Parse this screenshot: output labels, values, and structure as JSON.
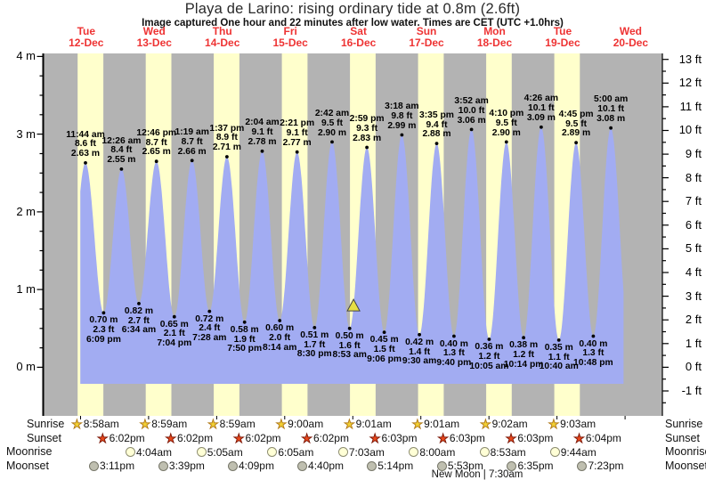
{
  "title": "Playa de Larino: rising  ordinary tide at 0.8m (2.6ft)",
  "subtitle": "Image captured One hour and 22 minutes after low water. Times are CET (UTC +1.0hrs)",
  "colors": {
    "night_band": "#b3b3b3",
    "day_band": "#ffffcc",
    "water": "#a2acf2",
    "day_label_red": "#ee3333",
    "marker_yellow": "#e6df45"
  },
  "chart_data": {
    "type": "area",
    "title": "Playa de Larino: rising  ordinary tide at 0.8m (2.6ft)",
    "x_days": [
      {
        "weekday": "Tue",
        "date": "12-Dec",
        "day": 12
      },
      {
        "weekday": "Wed",
        "date": "13-Dec",
        "day": 13
      },
      {
        "weekday": "Thu",
        "date": "14-Dec",
        "day": 14
      },
      {
        "weekday": "Fri",
        "date": "15-Dec",
        "day": 15
      },
      {
        "weekday": "Sat",
        "date": "16-Dec",
        "day": 16
      },
      {
        "weekday": "Sun",
        "date": "17-Dec",
        "day": 17
      },
      {
        "weekday": "Mon",
        "date": "18-Dec",
        "day": 18
      },
      {
        "weekday": "Tue",
        "date": "19-Dec",
        "day": 19
      },
      {
        "weekday": "Wed",
        "date": "20-Dec",
        "day": 20
      }
    ],
    "y_axis_left": {
      "unit": "m",
      "labels": [
        "4 m",
        "3 m",
        "2 m",
        "1 m",
        "0 m"
      ],
      "ticks_m": [
        4,
        3,
        2,
        1,
        0
      ]
    },
    "y_axis_right": {
      "unit": "ft",
      "labels": [
        "13 ft",
        "12 ft",
        "11 ft",
        "10 ft",
        "9 ft",
        "8 ft",
        "7 ft",
        "6 ft",
        "5 ft",
        "4 ft",
        "3 ft",
        "2 ft",
        "1 ft",
        "0 ft",
        "-1 ft"
      ],
      "ticks_ft": [
        13,
        12,
        11,
        10,
        9,
        8,
        7,
        6,
        5,
        4,
        3,
        2,
        1,
        0,
        -1
      ]
    },
    "ylim_m": [
      -0.63,
      4.04
    ],
    "grid": false,
    "tide_events": [
      {
        "type": "high",
        "day": 12,
        "time": "11:44 am",
        "height_m": 2.63,
        "ft_label": "8.6 ft",
        "m_label": "2.63 m"
      },
      {
        "type": "low",
        "day": 12,
        "time": "6:09 pm",
        "height_m": 0.7,
        "ft_label": "2.3 ft",
        "m_label": "0.70 m"
      },
      {
        "type": "high",
        "day": 13,
        "time": "12:26 am",
        "height_m": 2.55,
        "ft_label": "8.4 ft",
        "m_label": "2.55 m"
      },
      {
        "type": "low",
        "day": 13,
        "time": "6:34 am",
        "height_m": 0.82,
        "ft_label": "2.7 ft",
        "m_label": "0.82 m"
      },
      {
        "type": "high",
        "day": 13,
        "time": "12:46 pm",
        "height_m": 2.65,
        "ft_label": "8.7 ft",
        "m_label": "2.65 m"
      },
      {
        "type": "low",
        "day": 13,
        "time": "7:04 pm",
        "height_m": 0.65,
        "ft_label": "2.1 ft",
        "m_label": "0.65 m"
      },
      {
        "type": "high",
        "day": 14,
        "time": "1:19 am",
        "height_m": 2.66,
        "ft_label": "8.7 ft",
        "m_label": "2.66 m"
      },
      {
        "type": "low",
        "day": 14,
        "time": "7:28 am",
        "height_m": 0.72,
        "ft_label": "2.4 ft",
        "m_label": "0.72 m"
      },
      {
        "type": "high",
        "day": 14,
        "time": "1:37 pm",
        "height_m": 2.71,
        "ft_label": "8.9 ft",
        "m_label": "2.71 m"
      },
      {
        "type": "low",
        "day": 14,
        "time": "7:50 pm",
        "height_m": 0.58,
        "ft_label": "1.9 ft",
        "m_label": "0.58 m"
      },
      {
        "type": "high",
        "day": 15,
        "time": "2:04 am",
        "height_m": 2.78,
        "ft_label": "9.1 ft",
        "m_label": "2.78 m"
      },
      {
        "type": "low",
        "day": 15,
        "time": "8:14 am",
        "height_m": 0.6,
        "ft_label": "2.0 ft",
        "m_label": "0.60 m"
      },
      {
        "type": "high",
        "day": 15,
        "time": "2:21 pm",
        "height_m": 2.77,
        "ft_label": "9.1 ft",
        "m_label": "2.77 m"
      },
      {
        "type": "low",
        "day": 15,
        "time": "8:30 pm",
        "height_m": 0.51,
        "ft_label": "1.7 ft",
        "m_label": "0.51 m"
      },
      {
        "type": "high",
        "day": 16,
        "time": "2:42 am",
        "height_m": 2.9,
        "ft_label": "9.5 ft",
        "m_label": "2.90 m"
      },
      {
        "type": "low",
        "day": 16,
        "time": "8:53 am",
        "height_m": 0.5,
        "ft_label": "1.6 ft",
        "m_label": "0.50 m"
      },
      {
        "type": "high",
        "day": 16,
        "time": "2:59 pm",
        "height_m": 2.83,
        "ft_label": "9.3 ft",
        "m_label": "2.83 m"
      },
      {
        "type": "low",
        "day": 16,
        "time": "9:06 pm",
        "height_m": 0.45,
        "ft_label": "1.5 ft",
        "m_label": "0.45 m"
      },
      {
        "type": "high",
        "day": 17,
        "time": "3:18 am",
        "height_m": 2.99,
        "ft_label": "9.8 ft",
        "m_label": "2.99 m"
      },
      {
        "type": "low",
        "day": 17,
        "time": "9:30 am",
        "height_m": 0.42,
        "ft_label": "1.4 ft",
        "m_label": "0.42 m"
      },
      {
        "type": "high",
        "day": 17,
        "time": "3:35 pm",
        "height_m": 2.88,
        "ft_label": "9.4 ft",
        "m_label": "2.88 m"
      },
      {
        "type": "low",
        "day": 17,
        "time": "9:40 pm",
        "height_m": 0.4,
        "ft_label": "1.3 ft",
        "m_label": "0.40 m"
      },
      {
        "type": "high",
        "day": 18,
        "time": "3:52 am",
        "height_m": 3.06,
        "ft_label": "10.0 ft",
        "m_label": "3.06 m"
      },
      {
        "type": "low",
        "day": 18,
        "time": "10:05 am",
        "height_m": 0.36,
        "ft_label": "1.2 ft",
        "m_label": "0.36 m"
      },
      {
        "type": "high",
        "day": 18,
        "time": "4:10 pm",
        "height_m": 2.9,
        "ft_label": "9.5 ft",
        "m_label": "2.90 m"
      },
      {
        "type": "low",
        "day": 18,
        "time": "10:14 pm",
        "height_m": 0.38,
        "ft_label": "1.2 ft",
        "m_label": "0.38 m"
      },
      {
        "type": "high",
        "day": 19,
        "time": "4:26 am",
        "height_m": 3.09,
        "ft_label": "10.1 ft",
        "m_label": "3.09 m"
      },
      {
        "type": "low",
        "day": 19,
        "time": "10:40 am",
        "height_m": 0.35,
        "ft_label": "1.1 ft",
        "m_label": "0.35 m"
      },
      {
        "type": "high",
        "day": 19,
        "time": "4:45 pm",
        "height_m": 2.89,
        "ft_label": "9.5 ft",
        "m_label": "2.89 m"
      },
      {
        "type": "low",
        "day": 19,
        "time": "10:48 pm",
        "height_m": 0.4,
        "ft_label": "1.3 ft",
        "m_label": "0.40 m"
      },
      {
        "type": "high",
        "day": 20,
        "time": "5:00 am",
        "height_m": 3.08,
        "ft_label": "10.1 ft",
        "m_label": "3.08 m"
      }
    ],
    "current_marker": {
      "day": 16,
      "time": "10:15 am",
      "height_m": 0.8
    }
  },
  "astro": {
    "rows": [
      {
        "name": "Sunrise",
        "icon": "sunrise-icon",
        "entries": [
          {
            "day": 12,
            "time": "8:58am"
          },
          {
            "day": 13,
            "time": "8:59am"
          },
          {
            "day": 14,
            "time": "8:59am"
          },
          {
            "day": 15,
            "time": "9:00am"
          },
          {
            "day": 16,
            "time": "9:01am"
          },
          {
            "day": 17,
            "time": "9:01am"
          },
          {
            "day": 18,
            "time": "9:02am"
          },
          {
            "day": 19,
            "time": "9:03am"
          }
        ]
      },
      {
        "name": "Sunset",
        "icon": "sunset-icon",
        "entries": [
          {
            "day": 12,
            "time": "6:02pm"
          },
          {
            "day": 13,
            "time": "6:02pm"
          },
          {
            "day": 14,
            "time": "6:02pm"
          },
          {
            "day": 15,
            "time": "6:02pm"
          },
          {
            "day": 16,
            "time": "6:03pm"
          },
          {
            "day": 17,
            "time": "6:03pm"
          },
          {
            "day": 18,
            "time": "6:03pm"
          },
          {
            "day": 19,
            "time": "6:04pm"
          }
        ]
      },
      {
        "name": "Moonrise",
        "icon": "moonrise-icon",
        "entries": [
          {
            "day": 13,
            "time": "4:04am"
          },
          {
            "day": 14,
            "time": "5:05am"
          },
          {
            "day": 15,
            "time": "6:05am"
          },
          {
            "day": 16,
            "time": "7:03am"
          },
          {
            "day": 17,
            "time": "8:00am"
          },
          {
            "day": 18,
            "time": "8:53am"
          },
          {
            "day": 19,
            "time": "9:44am"
          }
        ]
      },
      {
        "name": "Moonset",
        "icon": "moonset-icon",
        "entries": [
          {
            "day": 12,
            "time": "3:11pm"
          },
          {
            "day": 13,
            "time": "3:39pm"
          },
          {
            "day": 14,
            "time": "4:09pm"
          },
          {
            "day": 15,
            "time": "4:40pm"
          },
          {
            "day": 16,
            "time": "5:14pm"
          },
          {
            "day": 17,
            "time": "5:53pm"
          },
          {
            "day": 18,
            "time": "6:35pm"
          },
          {
            "day": 19,
            "time": "7:23pm"
          }
        ]
      }
    ],
    "footnote": "New Moon | 7:30am"
  }
}
